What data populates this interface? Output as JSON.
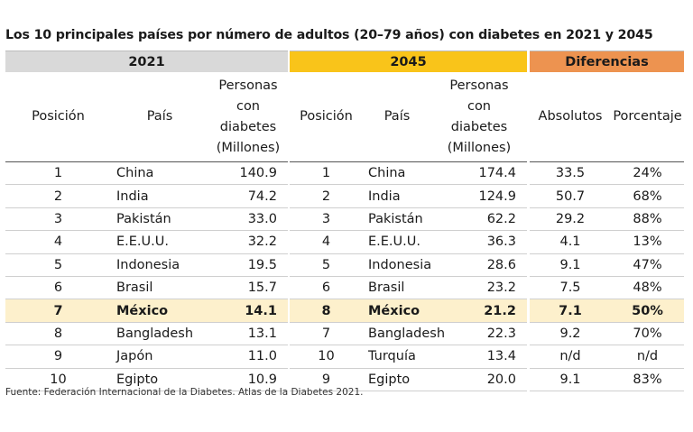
{
  "title": "Los 10 principales países por número de adultos (20–79 años) con diabetes en 2021 y 2045",
  "groups": {
    "y2021": "2021",
    "y2045": "2045",
    "diff": "Diferencias"
  },
  "headers": {
    "position": "Posición",
    "country": "País",
    "people_l1": "Personas",
    "people_l2": "con",
    "people_l3": "diabetes",
    "people_l4": "(Millones)",
    "absolute": "Absolutos",
    "percentage": "Porcentaje"
  },
  "colors": {
    "group_2021": "#d9d9d9",
    "group_2045": "#f9c41a",
    "group_diff": "#ed9350",
    "highlight_row": "#fdf0cc"
  },
  "rows": [
    {
      "p21": "1",
      "c21": "China",
      "v21": "140.9",
      "p45": "1",
      "c45": "China",
      "v45": "174.4",
      "abs": "33.5",
      "pct": "24%"
    },
    {
      "p21": "2",
      "c21": "India",
      "v21": "74.2",
      "p45": "2",
      "c45": "India",
      "v45": "124.9",
      "abs": "50.7",
      "pct": "68%"
    },
    {
      "p21": "3",
      "c21": "Pakistán",
      "v21": "33.0",
      "p45": "3",
      "c45": "Pakistán",
      "v45": "62.2",
      "abs": "29.2",
      "pct": "88%"
    },
    {
      "p21": "4",
      "c21": "E.E.U.U.",
      "v21": "32.2",
      "p45": "4",
      "c45": "E.E.U.U.",
      "v45": "36.3",
      "abs": "4.1",
      "pct": "13%"
    },
    {
      "p21": "5",
      "c21": "Indonesia",
      "v21": "19.5",
      "p45": "5",
      "c45": "Indonesia",
      "v45": "28.6",
      "abs": "9.1",
      "pct": "47%"
    },
    {
      "p21": "6",
      "c21": "Brasil",
      "v21": "15.7",
      "p45": "6",
      "c45": "Brasil",
      "v45": "23.2",
      "abs": "7.5",
      "pct": "48%"
    },
    {
      "p21": "7",
      "c21": "México",
      "v21": "14.1",
      "p45": "8",
      "c45": "México",
      "v45": "21.2",
      "abs": "7.1",
      "pct": "50%"
    },
    {
      "p21": "8",
      "c21": "Bangladesh",
      "v21": "13.1",
      "p45": "7",
      "c45": "Bangladesh",
      "v45": "22.3",
      "abs": "9.2",
      "pct": "70%"
    },
    {
      "p21": "9",
      "c21": "Japón",
      "v21": "11.0",
      "p45": "10",
      "c45": "Turquía",
      "v45": "13.4",
      "abs": "n/d",
      "pct": "n/d"
    },
    {
      "p21": "10",
      "c21": "Egipto",
      "v21": "10.9",
      "p45": "9",
      "c45": "Egipto",
      "v45": "20.0",
      "abs": "9.1",
      "pct": "83%"
    }
  ],
  "source": "Fuente: Federación Internacional de la Diabetes. Atlas de la Diabetes 2021."
}
